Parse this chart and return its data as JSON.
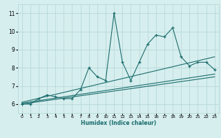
{
  "xlabel": "Humidex (Indice chaleur)",
  "ylabel": "",
  "bg_color": "#d6eeee",
  "grid_color": "#b8d8d8",
  "line_color": "#1a6b6b",
  "xlim": [
    -0.5,
    23.5
  ],
  "ylim": [
    5.5,
    11.5
  ],
  "xticks": [
    0,
    1,
    2,
    3,
    4,
    5,
    6,
    7,
    8,
    9,
    10,
    11,
    12,
    13,
    14,
    15,
    16,
    17,
    18,
    19,
    20,
    21,
    22,
    23
  ],
  "yticks": [
    6,
    7,
    8,
    9,
    10,
    11
  ],
  "main_series_x": [
    0,
    1,
    2,
    3,
    4,
    5,
    6,
    7,
    8,
    9,
    10,
    11,
    12,
    13,
    14,
    15,
    16,
    17,
    18,
    19,
    20,
    21,
    22,
    23
  ],
  "main_series_y": [
    6.0,
    6.0,
    6.3,
    6.5,
    6.4,
    6.3,
    6.3,
    6.8,
    8.0,
    7.5,
    7.3,
    11.0,
    8.3,
    7.3,
    8.3,
    9.3,
    9.8,
    9.7,
    10.2,
    8.6,
    8.1,
    8.3,
    8.3,
    7.9
  ],
  "trend1_x": [
    0,
    23
  ],
  "trend1_y": [
    6.05,
    7.65
  ],
  "trend2_x": [
    0,
    23
  ],
  "trend2_y": [
    6.1,
    8.6
  ],
  "trend3_x": [
    0,
    23
  ],
  "trend3_y": [
    6.0,
    7.5
  ]
}
